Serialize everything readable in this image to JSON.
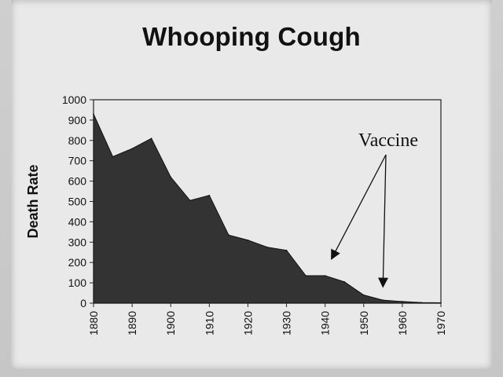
{
  "chart_data": {
    "type": "area",
    "title": "Whooping Cough",
    "xlabel": "",
    "ylabel": "Death Rate",
    "xlim": [
      1880,
      1970
    ],
    "ylim": [
      0,
      1000
    ],
    "x_ticks": [
      1880,
      1890,
      1900,
      1910,
      1920,
      1930,
      1940,
      1950,
      1960,
      1970
    ],
    "y_ticks": [
      0,
      100,
      200,
      300,
      400,
      500,
      600,
      700,
      800,
      900,
      1000
    ],
    "grid": false,
    "series": [
      {
        "x": [
          1880,
          1885,
          1890,
          1895,
          1900,
          1905,
          1910,
          1915,
          1920,
          1925,
          1930,
          1935,
          1940,
          1945,
          1950,
          1955,
          1960,
          1965,
          1970
        ],
        "values": [
          930,
          720,
          760,
          810,
          620,
          505,
          530,
          335,
          310,
          275,
          260,
          135,
          135,
          105,
          40,
          15,
          8,
          3,
          2
        ]
      }
    ],
    "annotation": {
      "text": "Vaccine",
      "arrow_targets": [
        [
          1942,
          230
        ],
        [
          1955,
          95
        ]
      ]
    },
    "colors": {
      "fill": "#333333",
      "stroke": "#111111",
      "background": "#e9e9e9"
    }
  }
}
